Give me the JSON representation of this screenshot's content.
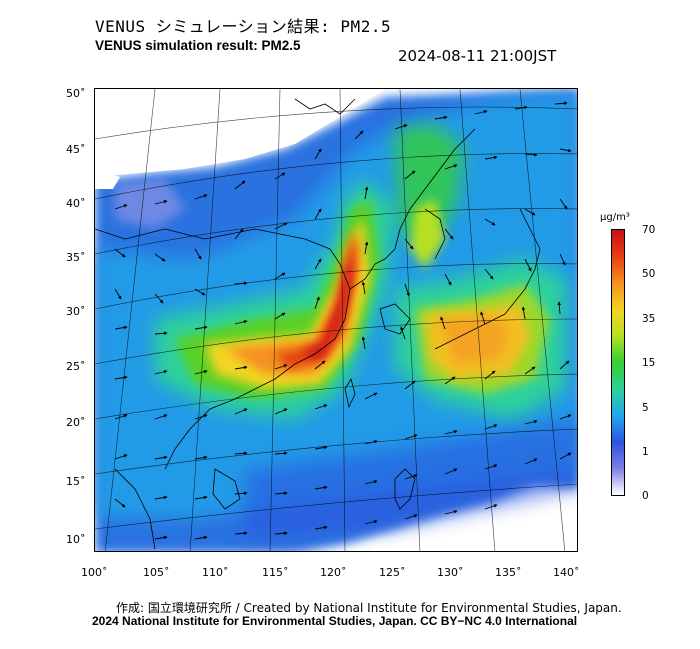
{
  "title_jp": "VENUS シミュレーション結果: PM2.5",
  "title_en": "VENUS simulation result: PM2.5",
  "datetime": "2024-08-11 21:00JST",
  "lat_labels": [
    "50˚",
    "45˚",
    "40˚",
    "35˚",
    "30˚",
    "25˚",
    "20˚",
    "15˚",
    "10˚"
  ],
  "lon_labels": [
    "100˚",
    "105˚",
    "110˚",
    "115˚",
    "120˚",
    "125˚",
    "130˚",
    "135˚",
    "140˚"
  ],
  "colorbar": {
    "unit": "μg/m³",
    "ticks": [
      "70",
      "50",
      "35",
      "15",
      "5",
      "1",
      "0"
    ],
    "colors": [
      "#ffffff",
      "#7f7fe6",
      "#2a55e0",
      "#20a8e8",
      "#2ed19a",
      "#34d034",
      "#b7e020",
      "#f2d520",
      "#f59020",
      "#e64010",
      "#c8101a"
    ]
  },
  "credit_line1": "作成: 国立環境研究所 / Created by National Institute for Environmental Studies, Japan.",
  "credit_line2": "2024 National Institute for Environmental Studies, Japan. CC BY−NC 4.0 International"
}
